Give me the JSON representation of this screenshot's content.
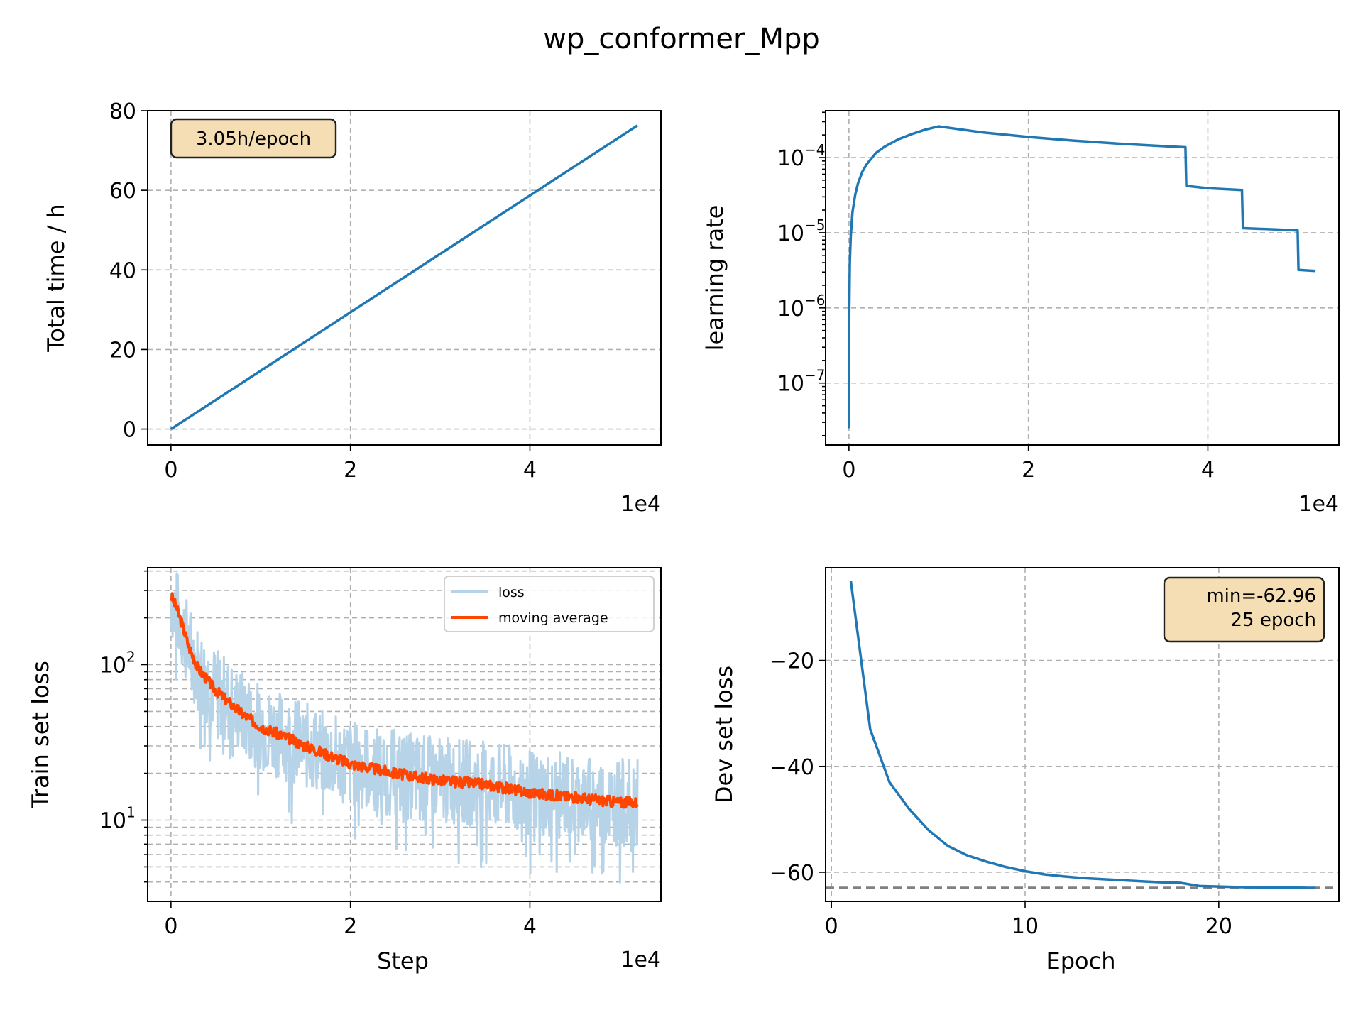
{
  "figure": {
    "title": "wp_conformer_Mpp"
  },
  "colors": {
    "line": "#1f77b4",
    "loss_band": "#b7d3e8",
    "moving_average": "#ff4500",
    "ann_box": "#f5deb3",
    "min_line": "#808080"
  },
  "chart_data": [
    {
      "id": "time",
      "type": "line",
      "xlabel": "",
      "ylabel": "Total time / h",
      "x_scale_label": "1e4",
      "xlim": [
        -0.26,
        5.46
      ],
      "ylim": [
        -4,
        80
      ],
      "xticks": [
        {
          "v": 0,
          "l": "0"
        },
        {
          "v": 2,
          "l": "2"
        },
        {
          "v": 4,
          "l": "4"
        }
      ],
      "yticks": [
        {
          "v": 0,
          "l": "0"
        },
        {
          "v": 20,
          "l": "20"
        },
        {
          "v": 40,
          "l": "40"
        },
        {
          "v": 60,
          "l": "60"
        },
        {
          "v": 80,
          "l": "80"
        }
      ],
      "grid": true,
      "annotation": "3.05h/epoch",
      "series": [
        {
          "x": [
            0,
            5.2
          ],
          "y": [
            0,
            76.3
          ]
        }
      ]
    },
    {
      "id": "lr",
      "type": "line",
      "xlabel": "",
      "ylabel": "learning rate",
      "x_scale_label": "1e4",
      "y_log": true,
      "xlim": [
        -0.26,
        5.46
      ],
      "ylim": [
        1.5e-08,
        0.00042
      ],
      "xticks": [
        {
          "v": 0,
          "l": "0"
        },
        {
          "v": 2,
          "l": "2"
        },
        {
          "v": 4,
          "l": "4"
        }
      ],
      "yticks": [
        {
          "v": 1e-07,
          "b": "10",
          "e": "−7"
        },
        {
          "v": 1e-06,
          "b": "10",
          "e": "−6"
        },
        {
          "v": 1e-05,
          "b": "10",
          "e": "−5"
        },
        {
          "v": 0.0001,
          "b": "10",
          "e": "−4"
        }
      ],
      "grid": true,
      "series": [
        {
          "x": [
            0.0,
            0.003,
            0.01,
            0.02,
            0.04,
            0.07,
            0.1,
            0.15,
            0.2,
            0.3,
            0.4,
            0.55,
            0.7,
            0.85,
            1.0,
            1.5,
            2.0,
            2.5,
            3.0,
            3.5,
            3.75,
            3.76,
            4.0,
            4.38,
            4.39,
            4.8,
            5.0,
            5.01,
            5.2
          ],
          "y": [
            2.5e-08,
            7e-07,
            4e-06,
            9e-06,
            1.9e-05,
            3.2e-05,
            4.5e-05,
            6.5e-05,
            8.2e-05,
            0.000115,
            0.00014,
            0.000175,
            0.000205,
            0.000235,
            0.00026,
            0.000215,
            0.000188,
            0.000168,
            0.000153,
            0.000142,
            0.000137,
            4.2e-05,
            3.9e-05,
            3.7e-05,
            1.15e-05,
            1.1e-05,
            1.07e-05,
            3.2e-06,
            3.1e-06
          ]
        }
      ]
    },
    {
      "id": "train_loss",
      "type": "line",
      "xlabel": "Step",
      "ylabel": "Train set loss",
      "x_scale_label": "1e4",
      "y_log": true,
      "xlim": [
        -0.26,
        5.46
      ],
      "ylim": [
        3,
        420
      ],
      "xticks": [
        {
          "v": 0,
          "l": "0"
        },
        {
          "v": 2,
          "l": "2"
        },
        {
          "v": 4,
          "l": "4"
        }
      ],
      "yticks": [
        {
          "v": 10,
          "b": "10",
          "e": "1"
        },
        {
          "v": 100,
          "b": "10",
          "e": "2"
        }
      ],
      "grid": true,
      "grid_minor": true,
      "legend_position": "top-right",
      "series": [
        {
          "name": "loss",
          "x": [
            0,
            0.05,
            0.1,
            0.2,
            0.3,
            0.5,
            0.8,
            1.0,
            1.5,
            2.0,
            2.5,
            3.0,
            3.5,
            4.0,
            4.5,
            5.0,
            5.2
          ],
          "y": [
            280,
            230,
            190,
            130,
            95,
            68,
            48,
            40,
            30,
            23,
            20,
            18,
            17,
            15,
            14,
            13,
            13
          ],
          "style": "noisy"
        },
        {
          "name": "moving average",
          "x": [
            0,
            0.05,
            0.1,
            0.2,
            0.3,
            0.5,
            0.8,
            1.0,
            1.5,
            2.0,
            2.5,
            3.0,
            3.5,
            4.0,
            4.5,
            5.0,
            5.2
          ],
          "y": [
            280,
            240,
            200,
            130,
            95,
            68,
            48,
            40,
            30,
            23,
            20,
            18,
            17,
            15,
            14,
            13,
            13
          ]
        }
      ]
    },
    {
      "id": "dev_loss",
      "type": "line",
      "xlabel": "Epoch",
      "ylabel": "Dev set loss",
      "xlim": [
        -0.3,
        26.2
      ],
      "ylim": [
        -65.5,
        -2.5
      ],
      "xticks": [
        {
          "v": 0,
          "l": "0"
        },
        {
          "v": 10,
          "l": "10"
        },
        {
          "v": 20,
          "l": "20"
        }
      ],
      "yticks": [
        {
          "v": -60,
          "l": "−60"
        },
        {
          "v": -40,
          "l": "−40"
        },
        {
          "v": -20,
          "l": "−20"
        }
      ],
      "grid": true,
      "annotation": [
        "min=-62.96",
        "25 epoch"
      ],
      "min_line": -62.96,
      "series": [
        {
          "x": [
            1,
            2,
            3,
            4,
            5,
            6,
            7,
            8,
            9,
            10,
            11,
            12,
            13,
            14,
            15,
            16,
            17,
            18,
            19,
            20,
            21,
            22,
            23,
            24,
            25
          ],
          "y": [
            -5,
            -33,
            -43,
            -48,
            -52,
            -55,
            -56.8,
            -58,
            -59,
            -59.8,
            -60.4,
            -60.8,
            -61.1,
            -61.3,
            -61.5,
            -61.7,
            -61.9,
            -62,
            -62.6,
            -62.7,
            -62.8,
            -62.85,
            -62.9,
            -62.93,
            -62.96
          ]
        }
      ]
    }
  ]
}
